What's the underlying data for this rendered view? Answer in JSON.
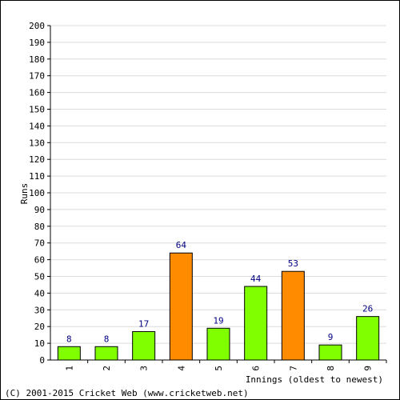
{
  "footer": "(C) 2001-2015 Cricket Web (www.cricketweb.net)",
  "colors": {
    "green_bar": "#80ff00",
    "orange_bar": "#ff8c00",
    "bar_outline": "#000000",
    "value_label": "#000080",
    "grid": "#dcdcdc",
    "axis": "#000000",
    "text": "#000000"
  },
  "chart_data": {
    "type": "bar",
    "title": "",
    "xlabel": "Innings (oldest to newest)",
    "ylabel": "Runs",
    "ylim": [
      0,
      200
    ],
    "y_tick_step": 10,
    "grid": true,
    "categories": [
      "1",
      "2",
      "3",
      "4",
      "5",
      "6",
      "7",
      "8",
      "9"
    ],
    "values": [
      8,
      8,
      17,
      64,
      19,
      44,
      53,
      9,
      26
    ],
    "data_labels": [
      "8",
      "8",
      "17",
      "64",
      "19",
      "44",
      "53",
      "9",
      "26"
    ],
    "bar_colors": [
      "green",
      "green",
      "green",
      "orange",
      "green",
      "green",
      "orange",
      "green",
      "green"
    ]
  }
}
